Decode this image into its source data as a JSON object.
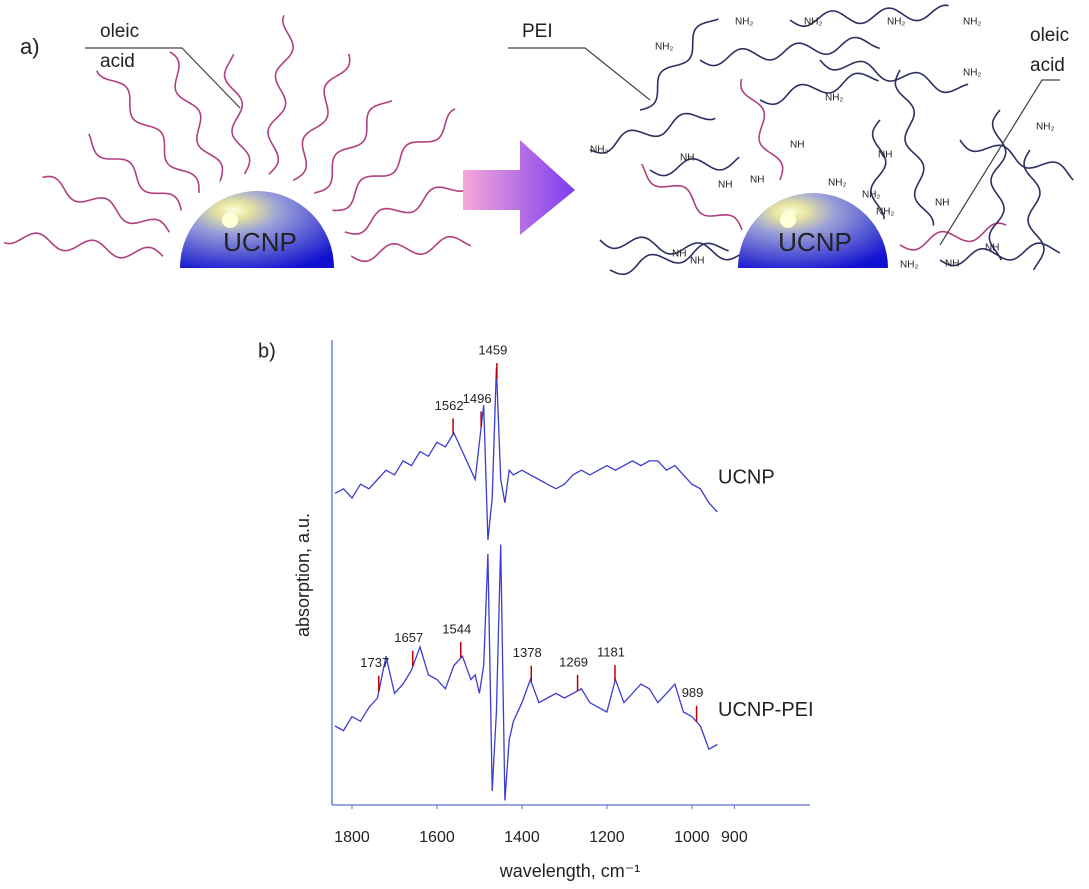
{
  "panel_a": {
    "label": "a)",
    "left": {
      "ligand_label": [
        "oleic",
        "acid"
      ],
      "core": "UCNP"
    },
    "right": {
      "polymer_label": "PEI",
      "ligand_label": [
        "oleic",
        "acid"
      ],
      "core": "UCNP",
      "amine_labels": [
        "NH₂",
        "NH₂",
        "NH₂",
        "NH₂",
        "NH₂",
        "NH₂",
        "NH₂",
        "NH₂",
        "NH₂",
        "NH",
        "NH",
        "NH",
        "NH",
        "NH",
        "NH",
        "NH₂",
        "NH₂",
        "NH₂",
        "NH",
        "NH",
        "NH",
        "NH",
        "NH₂"
      ]
    }
  },
  "chart_data": {
    "type": "line",
    "panel_label": "b)",
    "x_label": "wavelength, cm⁻¹",
    "y_label": "absorption, a.u.",
    "x": [
      1840,
      1820,
      1800,
      1780,
      1760,
      1740,
      1720,
      1700,
      1680,
      1660,
      1640,
      1620,
      1600,
      1580,
      1560,
      1540,
      1520,
      1510,
      1500,
      1490,
      1480,
      1470,
      1460,
      1450,
      1440,
      1430,
      1420,
      1400,
      1380,
      1360,
      1340,
      1320,
      1300,
      1280,
      1260,
      1240,
      1220,
      1200,
      1180,
      1160,
      1140,
      1120,
      1100,
      1080,
      1060,
      1040,
      1020,
      1000,
      980,
      960,
      940
    ],
    "series": [
      {
        "name": "UCNP",
        "color": "#3c3cd0",
        "peak_color": "#c00000",
        "peaks": [
          1562,
          1496,
          1459
        ],
        "values": [
          67,
          68,
          66,
          69,
          68,
          70,
          72,
          71,
          74,
          73,
          76,
          75,
          78,
          77,
          80,
          76,
          72,
          70,
          78,
          86,
          57,
          66,
          94,
          70,
          65,
          72,
          71,
          72,
          71,
          70,
          69,
          68,
          69,
          71,
          72,
          71,
          72,
          73,
          72,
          73,
          74,
          73,
          74,
          74,
          72,
          73,
          71,
          69,
          68,
          65,
          63
        ]
      },
      {
        "name": "UCNP-PEI",
        "color": "#3c3cd0",
        "peak_color": "#c00000",
        "peaks": [
          1737,
          1657,
          1544,
          1378,
          1269,
          1181,
          989
        ],
        "values": [
          17,
          16,
          19,
          18,
          21,
          23,
          32,
          24,
          26,
          29,
          34,
          28,
          27,
          25,
          30,
          32,
          27,
          28,
          24,
          30,
          54,
          3,
          20,
          56,
          1,
          14,
          18,
          22,
          27,
          22,
          23,
          24,
          23,
          24,
          25,
          22,
          21,
          20,
          27,
          22,
          24,
          26,
          25,
          22,
          24,
          26,
          20,
          19,
          17,
          12,
          13
        ]
      }
    ],
    "xlim": [
      1847,
      722
    ],
    "ylim": [
      0,
      100
    ],
    "xticks": [
      1800,
      1600,
      1400,
      1200,
      1000,
      900
    ],
    "axis_color": "#5a6fd0"
  }
}
